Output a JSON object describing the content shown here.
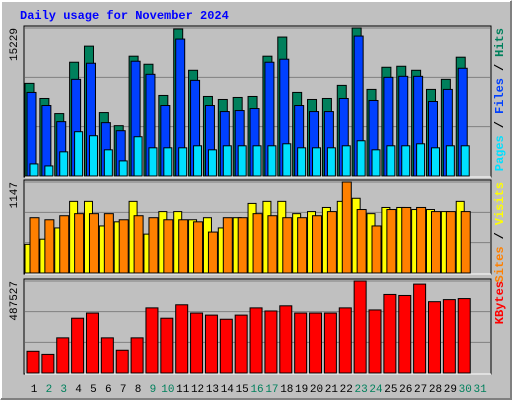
{
  "chart_data": [
    {
      "type": "bar",
      "title": "Daily usage for November 2024",
      "separator": "/",
      "ylim": [
        0,
        15229
      ],
      "yticks": [
        15229
      ],
      "series": [
        {
          "name": "Hits",
          "color": "#00805c",
          "values": [
            9531,
            7977,
            6423,
            11707,
            13364,
            6527,
            5180,
            12328,
            11500,
            8288,
            15126,
            10878,
            8184,
            7874,
            8081,
            8184,
            12328,
            14297,
            8599,
            7874,
            7977,
            9324,
            15229,
            8910,
            11189,
            11292,
            10878,
            8910,
            9946,
            12225,
            null
          ]
        },
        {
          "name": "Files",
          "color": "#0040ff",
          "values": [
            8599,
            7252,
            5594,
            9946,
            11603,
            5491,
            4662,
            11810,
            10464,
            7252,
            14090,
            9842,
            7252,
            6630,
            6734,
            6941,
            11707,
            12018,
            7252,
            6630,
            6630,
            7977,
            14400,
            7770,
            10153,
            10256,
            10256,
            7666,
            8910,
            11085,
            null
          ]
        },
        {
          "name": "Pages",
          "color": "#00e0ff",
          "values": [
            1243,
            1036,
            2486,
            4558,
            4144,
            2694,
            1554,
            4040,
            2901,
            2901,
            2901,
            3108,
            2694,
            3108,
            3108,
            3108,
            3108,
            3315,
            2901,
            2901,
            2901,
            3108,
            3626,
            2694,
            3108,
            3108,
            3315,
            2901,
            3108,
            3108,
            null
          ]
        }
      ]
    },
    {
      "type": "bar",
      "separator": "/",
      "ylim": [
        0,
        1147
      ],
      "yticks": [
        1147
      ],
      "series": [
        {
          "name": "Visits",
          "color": "#ffff00",
          "values": [
            361,
            426,
            568,
            903,
            903,
            593,
            645,
            903,
            490,
            774,
            774,
            671,
            697,
            568,
            697,
            877,
            903,
            903,
            748,
            774,
            826,
            903,
            942,
            748,
            826,
            826,
            800,
            800,
            774,
            903,
            null
          ]
        },
        {
          "name": "Sites",
          "color": "#ff8000",
          "values": [
            697,
            671,
            722,
            748,
            748,
            748,
            671,
            722,
            697,
            671,
            671,
            645,
            516,
            697,
            697,
            748,
            722,
            697,
            697,
            722,
            774,
            1147,
            800,
            593,
            800,
            826,
            826,
            774,
            774,
            774,
            null
          ]
        }
      ]
    },
    {
      "type": "bar",
      "ylim": [
        0,
        487527
      ],
      "yticks": [
        487527
      ],
      "categories": [
        "1",
        "2",
        "3",
        "4",
        "5",
        "6",
        "7",
        "8",
        "9",
        "10",
        "11",
        "12",
        "13",
        "14",
        "15",
        "16",
        "17",
        "18",
        "19",
        "20",
        "21",
        "22",
        "23",
        "24",
        "25",
        "26",
        "27",
        "28",
        "29",
        "30",
        "31"
      ],
      "label_colors": [
        "#000000",
        "#00805c",
        "#00805c",
        "#000000",
        "#000000",
        "#000000",
        "#000000",
        "#000000",
        "#00805c",
        "#00805c",
        "#000000",
        "#000000",
        "#000000",
        "#000000",
        "#000000",
        "#00805c",
        "#00805c",
        "#000000",
        "#000000",
        "#000000",
        "#000000",
        "#000000",
        "#00805c",
        "#00805c",
        "#000000",
        "#000000",
        "#000000",
        "#000000",
        "#000000",
        "#00805c",
        "#00805c"
      ],
      "series": [
        {
          "name": "KBytes",
          "color": "#ff0000",
          "values": [
            115038,
            98604,
            186252,
            290334,
            317724,
            186252,
            120516,
            186252,
            345114,
            290334,
            361548,
            317724,
            306768,
            284856,
            306768,
            345114,
            328680,
            356070,
            317724,
            317724,
            317724,
            345114,
            487527,
            334158,
            416328,
            410850,
            471108,
            377982,
            388938,
            394416,
            null
          ]
        }
      ]
    }
  ]
}
